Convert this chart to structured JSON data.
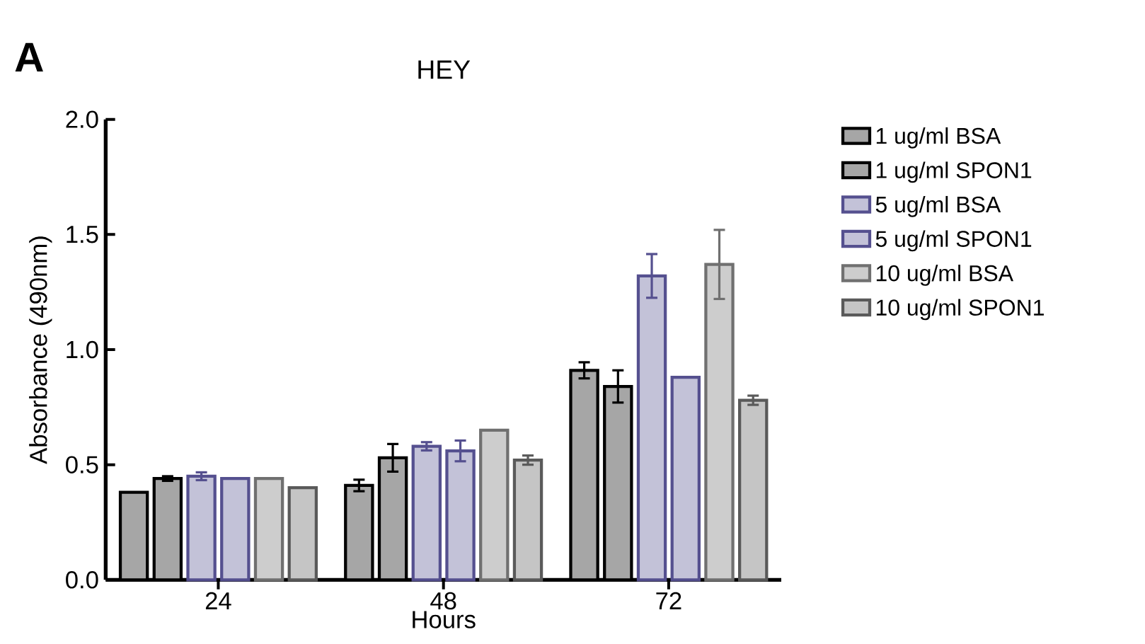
{
  "chart_data": {
    "type": "bar",
    "title": "HEY",
    "xlabel": "Hours",
    "ylabel": "Absorbance (490nm)",
    "annotations": [
      "A"
    ],
    "categories": [
      "24",
      "48",
      "72"
    ],
    "series": [
      {
        "name": "1 ug/ml BSA",
        "color": "#000000",
        "values": [
          0.38,
          0.41,
          0.91
        ],
        "errors": [
          null,
          0.025,
          0.035
        ]
      },
      {
        "name": "1 ug/ml SPON1",
        "color": "#000000",
        "values": [
          0.44,
          0.53,
          0.84
        ],
        "errors": [
          0.01,
          0.06,
          0.07
        ]
      },
      {
        "name": "5 ug/ml BSA",
        "color": "#55508f",
        "values": [
          0.45,
          0.58,
          1.32
        ],
        "errors": [
          0.017,
          0.018,
          0.095
        ]
      },
      {
        "name": "5 ug/ml SPON1",
        "color": "#55508f",
        "values": [
          0.44,
          0.56,
          0.88
        ],
        "errors": [
          null,
          0.045,
          null
        ]
      },
      {
        "name": "10 ug/ml BSA",
        "color": "#707070",
        "values": [
          0.44,
          0.65,
          1.37
        ],
        "errors": [
          null,
          null,
          0.15
        ]
      },
      {
        "name": "10 ug/ml SPON1",
        "color": "#5a5a5a",
        "values": [
          0.4,
          0.52,
          0.78
        ],
        "errors": [
          null,
          0.02,
          0.02
        ]
      }
    ],
    "ylim": [
      0,
      2.0
    ],
    "yticks": [
      {
        "value": 0,
        "label": "0.0"
      },
      {
        "value": 0.5,
        "label": "0.5"
      },
      {
        "value": 1.0,
        "label": "1.0"
      },
      {
        "value": 1.5,
        "label": "1.5"
      },
      {
        "value": 2.0,
        "label": "2.0"
      }
    ],
    "legend": "right",
    "grid": false
  }
}
